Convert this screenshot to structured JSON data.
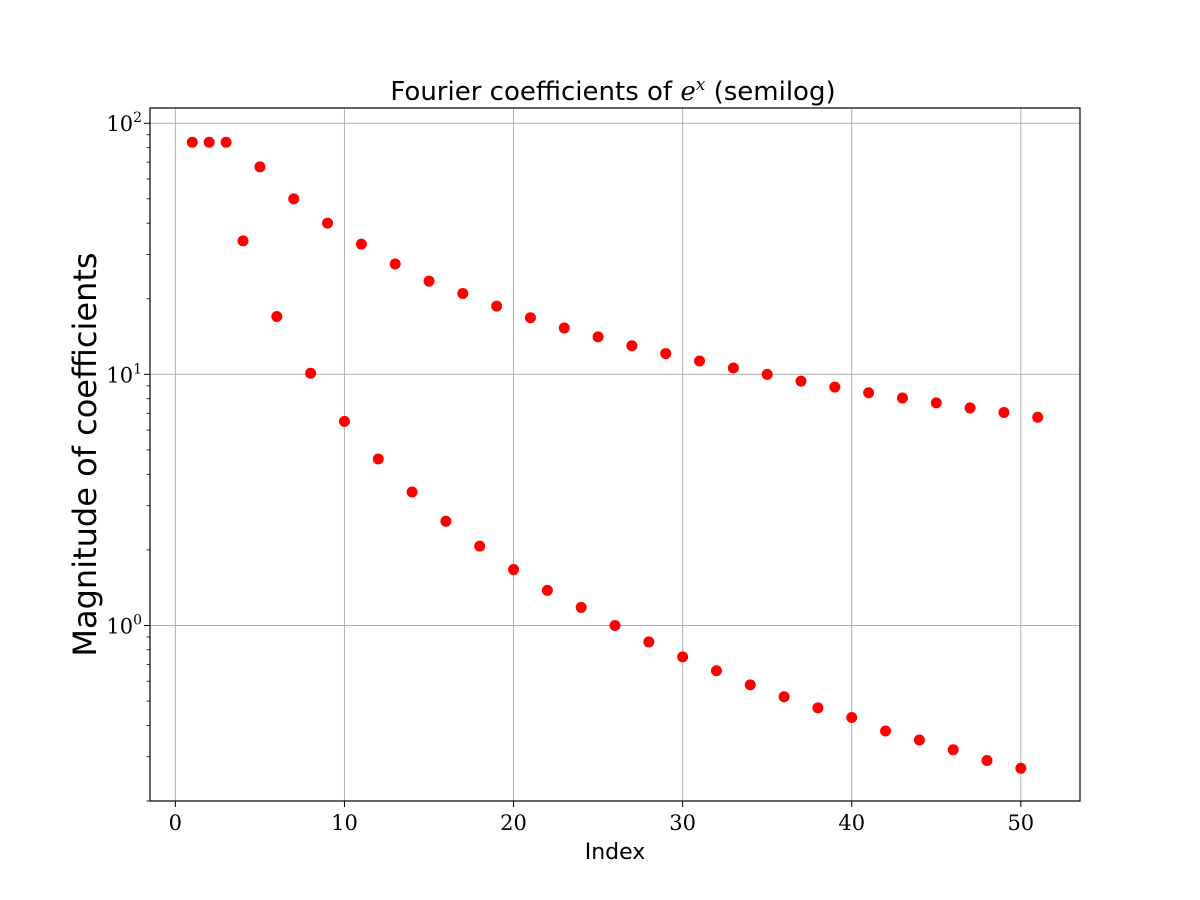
{
  "chart_data": {
    "type": "scatter",
    "title": {
      "prefix": "Fourier coefficients of ",
      "math_base": "e",
      "math_exp": "x",
      "suffix": " (semilog)"
    },
    "xlabel": "Index",
    "ylabel": "Magnitude of coefficients",
    "xscale": "linear",
    "yscale": "log",
    "xlim": [
      -1.5,
      53.5
    ],
    "ylim": [
      0.2,
      115
    ],
    "xticks": [
      0,
      10,
      20,
      30,
      40,
      50
    ],
    "yticks": [
      {
        "value": 1,
        "base": "10",
        "exp": "0"
      },
      {
        "value": 10,
        "base": "10",
        "exp": "1"
      },
      {
        "value": 100,
        "base": "10",
        "exp": "2"
      }
    ],
    "grid": true,
    "marker_color": "#ff0000",
    "series": [
      {
        "x": [
          1,
          2,
          3,
          4,
          5,
          6,
          7,
          8,
          9,
          10,
          11,
          12,
          13,
          14,
          15,
          16,
          17,
          18,
          19,
          20,
          21,
          22,
          23,
          24,
          25,
          26,
          27,
          28,
          29,
          30,
          31,
          32,
          33,
          34,
          35,
          36,
          37,
          38,
          39,
          40,
          41,
          42,
          43,
          44,
          45,
          46,
          47,
          48,
          49,
          50,
          51
        ],
        "y": [
          84,
          84,
          84,
          34,
          67,
          17,
          50,
          10.1,
          40,
          6.5,
          33,
          4.6,
          27.5,
          3.4,
          23.5,
          2.6,
          21,
          2.07,
          18.7,
          1.67,
          16.8,
          1.38,
          15.3,
          1.18,
          14.1,
          1.0,
          13.0,
          0.86,
          12.1,
          0.75,
          11.3,
          0.66,
          10.6,
          0.58,
          10.0,
          0.52,
          9.4,
          0.47,
          8.9,
          0.43,
          8.45,
          0.38,
          8.05,
          0.35,
          7.7,
          0.32,
          7.35,
          0.29,
          7.05,
          0.27,
          6.75
        ]
      }
    ]
  }
}
